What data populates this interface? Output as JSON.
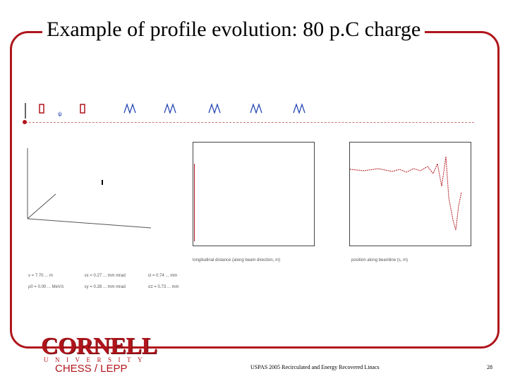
{
  "slide": {
    "title": "Example of profile evolution: 80 p.C charge",
    "footer_center": "USPAS 2005 Recirculated and Energy Recovered Linacs",
    "page_number": "28",
    "logo_text": "CORNELL",
    "logo_subtext": "UNIVERSITY",
    "dept": "CHESS / LEPP",
    "accent_color": "#b0151c"
  },
  "figure": {
    "lattice_strip_icon": "beamline-elements-icon",
    "plot3d_icon": "3d-axes-plot-icon",
    "plot_left_xlabel": "longitudinal distance (along beam direction, m)",
    "plot_right_xlabel": "position along beamline (s, m)",
    "params": [
      "v = 7.70 ... m",
      "εx = 0.27 ... mm mrad",
      "εt = 0.74 ... mm",
      "ρ0 = 0.00 ... MeV/c",
      "εy = 0.28 ... mm mrad",
      "σz = 0.73 ... mm"
    ]
  }
}
